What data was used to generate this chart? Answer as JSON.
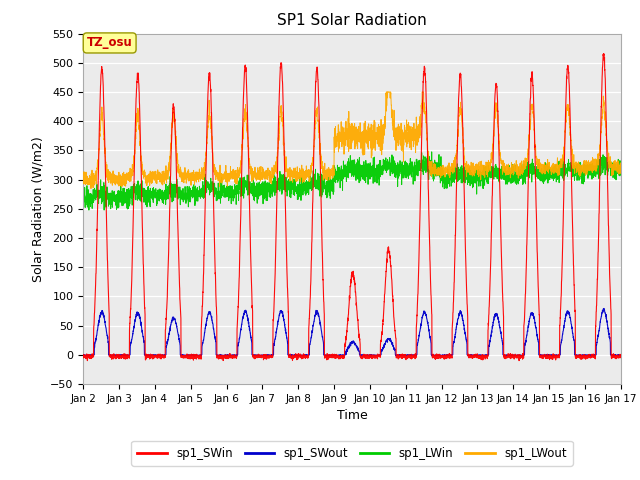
{
  "title": "SP1 Solar Radiation",
  "xlabel": "Time",
  "ylabel": "Solar Radiation (W/m2)",
  "xlim_days": [
    2,
    17
  ],
  "ylim": [
    -50,
    550
  ],
  "yticks": [
    -50,
    0,
    50,
    100,
    150,
    200,
    250,
    300,
    350,
    400,
    450,
    500,
    550
  ],
  "xtick_labels": [
    "Jan 2",
    "Jan 3",
    "Jan 4",
    "Jan 5",
    "Jan 6",
    "Jan 7",
    "Jan 8",
    "Jan 9",
    "Jan 10",
    "Jan 11",
    "Jan 12",
    "Jan 13",
    "Jan 14",
    "Jan 15",
    "Jan 16",
    "Jan 17"
  ],
  "xtick_positions": [
    2,
    3,
    4,
    5,
    6,
    7,
    8,
    9,
    10,
    11,
    12,
    13,
    14,
    15,
    16,
    17
  ],
  "colors": {
    "sp1_SWin": "#ff0000",
    "sp1_SWout": "#0000cc",
    "sp1_LWin": "#00cc00",
    "sp1_LWout": "#ffaa00"
  },
  "legend_labels": [
    "sp1_SWin",
    "sp1_SWout",
    "sp1_LWin",
    "sp1_LWout"
  ],
  "annotation_text": "TZ_osu",
  "annotation_color": "#cc0000",
  "annotation_bg": "#ffff99",
  "plot_bg": "#ebebeb"
}
